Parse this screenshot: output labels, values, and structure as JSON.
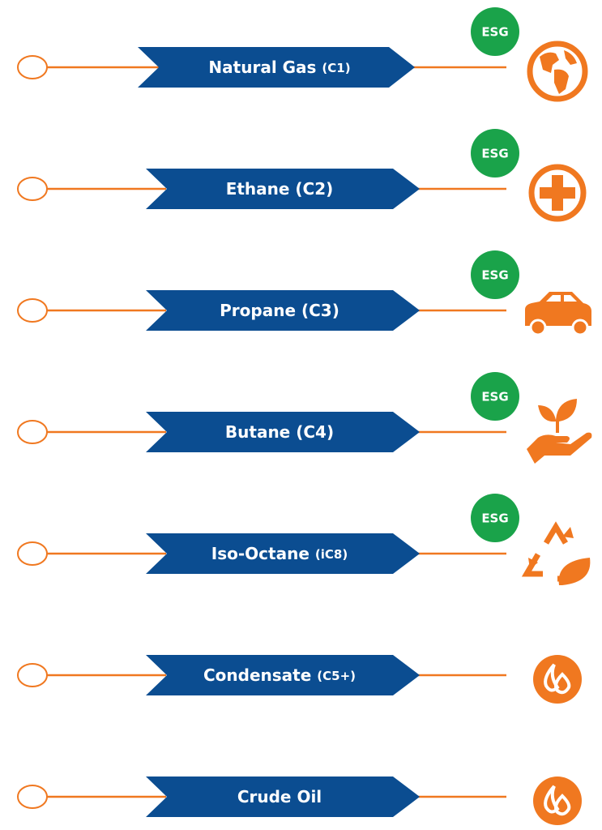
{
  "rows": [
    {
      "label": "Natural Gas",
      "sub": "(C1)",
      "badge": "ESG"
    },
    {
      "label": "Ethane (C2)",
      "badge": "ESG"
    },
    {
      "label": "Propane (C3)",
      "badge": "ESG"
    },
    {
      "label": "Butane (C4)",
      "badge": "ESG"
    },
    {
      "label": "Iso-Octane",
      "sub": "(iC8)",
      "badge": "ESG"
    },
    {
      "label": "Condensate",
      "sub": "(C5+)"
    },
    {
      "label": "Crude Oil"
    }
  ]
}
